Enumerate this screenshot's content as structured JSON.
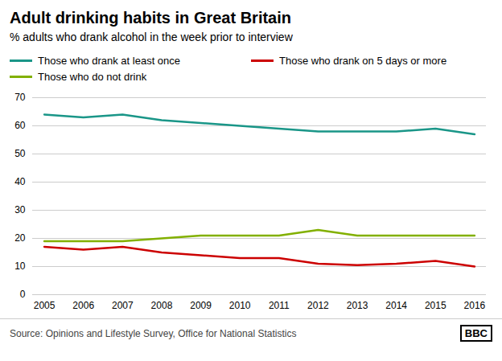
{
  "chart_data": {
    "type": "line",
    "title": "Adult drinking habits in Great Britain",
    "subtitle": "% adults who drank alcohol in the week prior to interview",
    "source": "Source: Opinions and Lifestyle Survey, Office for National Statistics",
    "annotations": [
      "BBC"
    ],
    "x": [
      2005,
      2006,
      2007,
      2008,
      2009,
      2010,
      2011,
      2012,
      2013,
      2014,
      2015,
      2016
    ],
    "series": [
      {
        "name": "Those who drank at least once",
        "color": "#1a9688",
        "values": [
          64,
          63,
          64,
          62,
          61,
          60,
          59,
          58,
          58,
          58,
          59,
          57
        ]
      },
      {
        "name": "Those who drank on 5 days or more",
        "color": "#cc0000",
        "values": [
          17,
          16,
          17,
          15,
          14,
          13,
          13,
          11,
          10.5,
          11,
          12,
          10
        ]
      },
      {
        "name": "Those who do not drink",
        "color": "#82b000",
        "values": [
          19,
          19,
          19,
          20,
          21,
          21,
          21,
          23,
          21,
          21,
          21,
          21
        ]
      }
    ],
    "xlim": [
      2004.7,
      2016.3
    ],
    "xticks": [
      2005,
      2006,
      2007,
      2008,
      2009,
      2010,
      2011,
      2012,
      2013,
      2014,
      2015,
      2016
    ],
    "ylim": [
      0,
      70
    ],
    "yticks": [
      0,
      10,
      20,
      30,
      40,
      50,
      60,
      70
    ],
    "grid": true,
    "legend": "top-left"
  }
}
